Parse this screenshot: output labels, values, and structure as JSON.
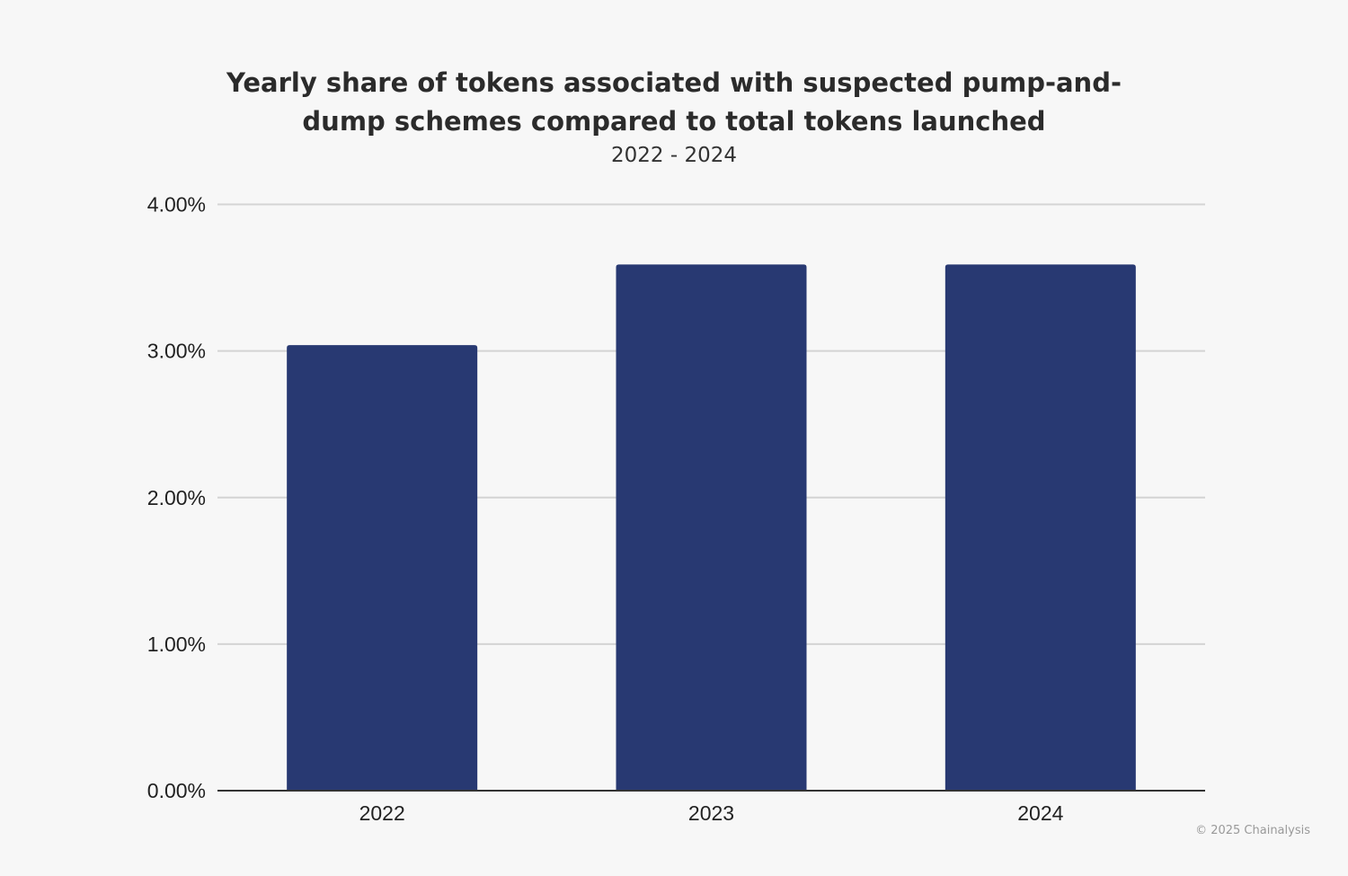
{
  "chart_data": {
    "type": "bar",
    "title": "Yearly share of tokens associated with suspected pump-and-dump schemes compared to total tokens launched",
    "subtitle": "2022 - 2024",
    "categories": [
      "2022",
      "2023",
      "2024"
    ],
    "values": [
      3.04,
      3.59,
      3.59
    ],
    "value_unit": "%",
    "ylim": [
      0,
      4
    ],
    "yticks": [
      "0.00%",
      "1.00%",
      "2.00%",
      "3.00%",
      "4.00%"
    ],
    "xlabel": "",
    "ylabel": "",
    "grid": true,
    "bar_color": "#283972",
    "credit": "© 2025 Chainalysis"
  }
}
